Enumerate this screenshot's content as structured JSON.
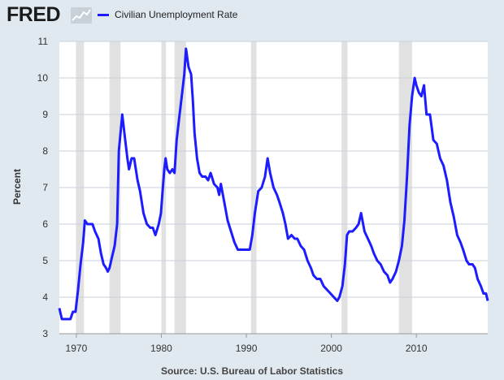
{
  "header": {
    "logo_text": "FRED",
    "legend_label": "Civilian Unemployment Rate"
  },
  "source_note": "Source: U.S. Bureau of Labor Statistics",
  "colors": {
    "background": "#e1e9f0",
    "plot_background": "#ffffff",
    "series": "#1c1cff",
    "recession": "#e1e1e1",
    "grid": "#c9d1da"
  },
  "icons": [
    "fred-chart-icon"
  ],
  "chart_data": {
    "type": "line",
    "title": "",
    "xlabel": "",
    "ylabel": "Percent",
    "xlim": [
      1968.0,
      2018.4
    ],
    "ylim": [
      3,
      11
    ],
    "y_ticks": [
      3,
      4,
      5,
      6,
      7,
      8,
      9,
      10,
      11
    ],
    "x_ticks": [
      1970,
      1980,
      1990,
      2000,
      2010
    ],
    "grid": "horizontal",
    "legend_position": "top-left",
    "recessions": [
      [
        1969.95,
        1970.9
      ],
      [
        1973.9,
        1975.2
      ],
      [
        1980.0,
        1980.55
      ],
      [
        1981.55,
        1982.9
      ],
      [
        1990.55,
        1991.2
      ],
      [
        2001.2,
        2001.9
      ],
      [
        2007.95,
        2009.5
      ]
    ],
    "series": [
      {
        "name": "Civilian Unemployment Rate",
        "points": [
          [
            1968.0,
            3.7
          ],
          [
            1968.3,
            3.4
          ],
          [
            1968.8,
            3.4
          ],
          [
            1969.3,
            3.4
          ],
          [
            1969.6,
            3.6
          ],
          [
            1969.9,
            3.6
          ],
          [
            1970.2,
            4.2
          ],
          [
            1970.5,
            4.9
          ],
          [
            1970.8,
            5.5
          ],
          [
            1971.0,
            6.1
          ],
          [
            1971.3,
            6.0
          ],
          [
            1971.6,
            6.0
          ],
          [
            1971.9,
            6.0
          ],
          [
            1972.2,
            5.8
          ],
          [
            1972.6,
            5.6
          ],
          [
            1972.9,
            5.2
          ],
          [
            1973.2,
            4.9
          ],
          [
            1973.5,
            4.8
          ],
          [
            1973.7,
            4.7
          ],
          [
            1973.9,
            4.8
          ],
          [
            1974.2,
            5.1
          ],
          [
            1974.5,
            5.4
          ],
          [
            1974.8,
            6.0
          ],
          [
            1975.0,
            8.0
          ],
          [
            1975.4,
            9.0
          ],
          [
            1975.7,
            8.4
          ],
          [
            1976.0,
            7.8
          ],
          [
            1976.2,
            7.5
          ],
          [
            1976.5,
            7.8
          ],
          [
            1976.8,
            7.8
          ],
          [
            1977.2,
            7.2
          ],
          [
            1977.5,
            6.9
          ],
          [
            1977.9,
            6.3
          ],
          [
            1978.3,
            6.0
          ],
          [
            1978.7,
            5.9
          ],
          [
            1979.0,
            5.9
          ],
          [
            1979.3,
            5.7
          ],
          [
            1979.7,
            6.0
          ],
          [
            1979.95,
            6.3
          ],
          [
            1980.15,
            6.9
          ],
          [
            1980.35,
            7.5
          ],
          [
            1980.5,
            7.8
          ],
          [
            1980.7,
            7.5
          ],
          [
            1981.0,
            7.4
          ],
          [
            1981.3,
            7.5
          ],
          [
            1981.55,
            7.4
          ],
          [
            1981.8,
            8.3
          ],
          [
            1982.1,
            8.9
          ],
          [
            1982.4,
            9.5
          ],
          [
            1982.7,
            10.1
          ],
          [
            1982.9,
            10.8
          ],
          [
            1983.2,
            10.3
          ],
          [
            1983.5,
            10.1
          ],
          [
            1983.7,
            9.4
          ],
          [
            1983.9,
            8.5
          ],
          [
            1984.2,
            7.8
          ],
          [
            1984.5,
            7.4
          ],
          [
            1984.8,
            7.3
          ],
          [
            1985.2,
            7.3
          ],
          [
            1985.5,
            7.2
          ],
          [
            1985.8,
            7.4
          ],
          [
            1986.2,
            7.1
          ],
          [
            1986.6,
            7.0
          ],
          [
            1986.8,
            6.8
          ],
          [
            1987.0,
            7.1
          ],
          [
            1987.4,
            6.6
          ],
          [
            1987.8,
            6.1
          ],
          [
            1988.2,
            5.8
          ],
          [
            1988.6,
            5.5
          ],
          [
            1989.0,
            5.3
          ],
          [
            1989.4,
            5.3
          ],
          [
            1989.8,
            5.3
          ],
          [
            1990.1,
            5.3
          ],
          [
            1990.4,
            5.3
          ],
          [
            1990.7,
            5.7
          ],
          [
            1991.0,
            6.3
          ],
          [
            1991.4,
            6.9
          ],
          [
            1991.8,
            7.0
          ],
          [
            1992.2,
            7.3
          ],
          [
            1992.5,
            7.8
          ],
          [
            1992.8,
            7.4
          ],
          [
            1993.2,
            7.0
          ],
          [
            1993.6,
            6.8
          ],
          [
            1993.9,
            6.6
          ],
          [
            1994.3,
            6.3
          ],
          [
            1994.6,
            6.0
          ],
          [
            1994.9,
            5.6
          ],
          [
            1995.3,
            5.7
          ],
          [
            1995.7,
            5.6
          ],
          [
            1996.0,
            5.6
          ],
          [
            1996.4,
            5.4
          ],
          [
            1996.8,
            5.3
          ],
          [
            1997.2,
            5.0
          ],
          [
            1997.6,
            4.8
          ],
          [
            1997.9,
            4.6
          ],
          [
            1998.3,
            4.5
          ],
          [
            1998.7,
            4.5
          ],
          [
            1999.1,
            4.3
          ],
          [
            1999.5,
            4.2
          ],
          [
            1999.9,
            4.1
          ],
          [
            2000.3,
            4.0
          ],
          [
            2000.7,
            3.9
          ],
          [
            2000.95,
            4.0
          ],
          [
            2001.3,
            4.3
          ],
          [
            2001.6,
            4.9
          ],
          [
            2001.85,
            5.7
          ],
          [
            2002.1,
            5.8
          ],
          [
            2002.5,
            5.8
          ],
          [
            2002.9,
            5.9
          ],
          [
            2003.2,
            6.0
          ],
          [
            2003.5,
            6.3
          ],
          [
            2003.9,
            5.8
          ],
          [
            2004.3,
            5.6
          ],
          [
            2004.7,
            5.4
          ],
          [
            2005.0,
            5.2
          ],
          [
            2005.4,
            5.0
          ],
          [
            2005.8,
            4.9
          ],
          [
            2006.2,
            4.7
          ],
          [
            2006.6,
            4.6
          ],
          [
            2006.9,
            4.4
          ],
          [
            2007.2,
            4.5
          ],
          [
            2007.6,
            4.7
          ],
          [
            2007.95,
            5.0
          ],
          [
            2008.3,
            5.4
          ],
          [
            2008.6,
            6.1
          ],
          [
            2008.9,
            7.3
          ],
          [
            2009.2,
            8.7
          ],
          [
            2009.5,
            9.5
          ],
          [
            2009.8,
            10.0
          ],
          [
            2010.0,
            9.8
          ],
          [
            2010.3,
            9.6
          ],
          [
            2010.6,
            9.5
          ],
          [
            2010.9,
            9.8
          ],
          [
            2011.2,
            9.0
          ],
          [
            2011.6,
            9.0
          ],
          [
            2012.0,
            8.3
          ],
          [
            2012.4,
            8.2
          ],
          [
            2012.8,
            7.8
          ],
          [
            2013.2,
            7.6
          ],
          [
            2013.6,
            7.2
          ],
          [
            2014.0,
            6.6
          ],
          [
            2014.4,
            6.2
          ],
          [
            2014.8,
            5.7
          ],
          [
            2015.2,
            5.5
          ],
          [
            2015.5,
            5.3
          ],
          [
            2015.9,
            5.0
          ],
          [
            2016.2,
            4.9
          ],
          [
            2016.6,
            4.9
          ],
          [
            2016.9,
            4.8
          ],
          [
            2017.2,
            4.5
          ],
          [
            2017.6,
            4.3
          ],
          [
            2017.9,
            4.1
          ],
          [
            2018.2,
            4.1
          ],
          [
            2018.4,
            3.9
          ]
        ]
      }
    ],
    "x_tick_labels": [
      "1970",
      "1980",
      "1990",
      "2000",
      "2010"
    ],
    "y_tick_labels": [
      "3",
      "4",
      "5",
      "6",
      "7",
      "8",
      "9",
      "10",
      "11"
    ]
  }
}
